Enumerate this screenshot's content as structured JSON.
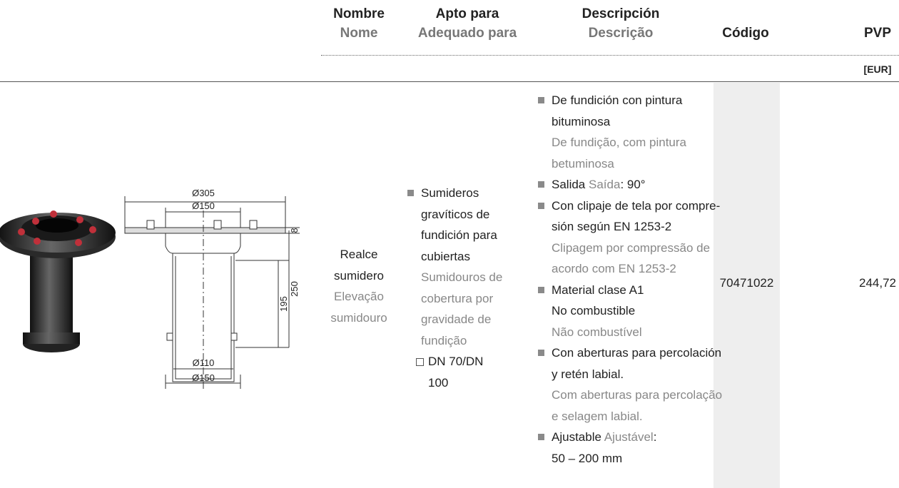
{
  "header": {
    "name": {
      "es": "Nombre",
      "pt": "Nome"
    },
    "suitable": {
      "es": "Apto para",
      "pt": "Adequado para"
    },
    "description": {
      "es": "Descripción",
      "pt": "Descrição"
    },
    "code": "Código",
    "price": {
      "label": "PVP",
      "unit": "[EUR]"
    }
  },
  "drawing": {
    "labels": [
      "Ø305",
      "Ø150",
      "8",
      "195",
      "250",
      "Ø110",
      "Ø150"
    ]
  },
  "row": {
    "name": {
      "es": [
        "Realce",
        "sumidero"
      ],
      "pt": [
        "Elevação",
        "sumidouro"
      ]
    },
    "suitable": {
      "es": [
        "Sumideros",
        "gravíticos de",
        "fundición para",
        "cubiertas"
      ],
      "pt": [
        "Sumidouros de",
        "cobertura por",
        "gravidade de",
        "fundição"
      ],
      "option": [
        "DN 70/DN",
        "100"
      ]
    },
    "description": [
      {
        "es": [
          "De fundición con pintura",
          "bituminosa"
        ],
        "pt": [
          "De fundição, com pintura",
          "betuminosa"
        ]
      },
      {
        "es_inline": "Salida",
        "pt_inline": "Saída",
        "tail": ": 90°"
      },
      {
        "es": [
          "Con clipaje de tela por compre-",
          "sión según EN 1253-2"
        ],
        "pt": [
          "Clipagem por compressão de",
          "acordo com EN 1253-2"
        ]
      },
      {
        "es": [
          "Material clase A1",
          "No combustible"
        ],
        "pt": [
          "Não combustível"
        ]
      },
      {
        "es": [
          "Con aberturas para percolación",
          "y retén labial."
        ],
        "pt": [
          "Com aberturas para percolação",
          "e selagem labial."
        ]
      },
      {
        "es_inline": "Ajustable",
        "pt_inline": "Ajustável",
        "tail": ":",
        "next": "50 – 200 mm"
      }
    ],
    "code": "70471022",
    "price": "244,72"
  }
}
